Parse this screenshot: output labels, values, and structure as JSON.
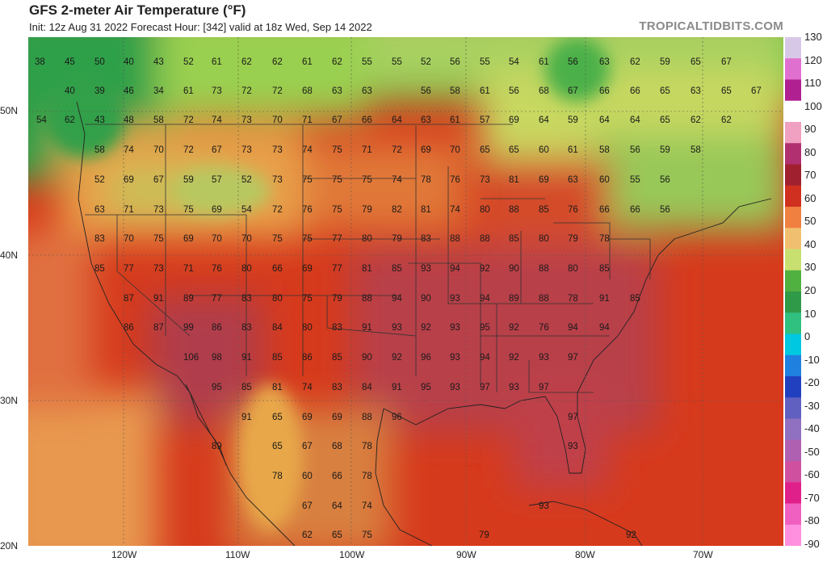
{
  "header": {
    "title": "GFS 2-meter Air Temperature (°F)",
    "subtitle": "Init: 12z Aug 31 2022   Forecast Hour: [342]   valid at 18z Wed, Sep 14 2022",
    "brand": "TROPICALTIDBITS.COM"
  },
  "axes": {
    "lat_labels": [
      "50N",
      "40N",
      "30N",
      "20N"
    ],
    "lon_labels": [
      "120W",
      "110W",
      "100W",
      "90W",
      "80W",
      "70W"
    ]
  },
  "colorbar": {
    "labels": [
      "130",
      "120",
      "110",
      "100",
      "90",
      "80",
      "70",
      "60",
      "50",
      "40",
      "30",
      "20",
      "10",
      "0",
      "-10",
      "-20",
      "-30",
      "-40",
      "-50",
      "-60",
      "-70",
      "-80",
      "-90"
    ],
    "colors": [
      "#d8c8e8",
      "#e070d0",
      "#b02090",
      "#ffffff",
      "#f0a0c0",
      "#b03070",
      "#a02030",
      "#d03020",
      "#f08040",
      "#f0c070",
      "#c8e070",
      "#50b040",
      "#2f9a48",
      "#30c080",
      "#00c8e0",
      "#2080e0",
      "#2040c0",
      "#6060c0",
      "#9070c0",
      "#b060b0",
      "#d050a0",
      "#e0208a",
      "#f060c0",
      "#ff90e0"
    ]
  },
  "map_values": [
    "38",
    "45",
    "50",
    "40",
    "43",
    "52",
    "61",
    "62",
    "62",
    "61",
    "62",
    "55",
    "55",
    "52",
    "56",
    "55",
    "54",
    "61",
    "56",
    "63",
    "62",
    "59",
    "65",
    "67",
    "40",
    "39",
    "46",
    "34",
    "61",
    "73",
    "72",
    "72",
    "68",
    "63",
    "63",
    "56",
    "58",
    "61",
    "56",
    "68",
    "67",
    "66",
    "66",
    "65",
    "63",
    "65",
    "67",
    "54",
    "62",
    "43",
    "48",
    "58",
    "72",
    "74",
    "73",
    "70",
    "71",
    "67",
    "66",
    "64",
    "63",
    "61",
    "57",
    "69",
    "64",
    "59",
    "64",
    "64",
    "65",
    "62",
    "62",
    "58",
    "74",
    "70",
    "72",
    "67",
    "73",
    "73",
    "74",
    "75",
    "71",
    "72",
    "69",
    "70",
    "65",
    "65",
    "60",
    "61",
    "58",
    "56",
    "59",
    "58",
    "52",
    "69",
    "67",
    "59",
    "57",
    "52",
    "73",
    "75",
    "75",
    "75",
    "74",
    "78",
    "76",
    "73",
    "81",
    "69",
    "63",
    "60",
    "55",
    "56",
    "63",
    "71",
    "73",
    "75",
    "69",
    "54",
    "72",
    "76",
    "75",
    "79",
    "82",
    "81",
    "74",
    "80",
    "88",
    "85",
    "76",
    "66",
    "66",
    "56",
    "83",
    "70",
    "75",
    "69",
    "70",
    "70",
    "75",
    "75",
    "77",
    "80",
    "79",
    "83",
    "88",
    "88",
    "85",
    "80",
    "79",
    "78",
    "85",
    "77",
    "73",
    "71",
    "76",
    "80",
    "66",
    "69",
    "77",
    "81",
    "85",
    "93",
    "94",
    "92",
    "90",
    "88",
    "80",
    "85",
    "87",
    "91",
    "89",
    "77",
    "83",
    "80",
    "75",
    "79",
    "88",
    "94",
    "90",
    "93",
    "94",
    "89",
    "88",
    "78",
    "91",
    "85",
    "86",
    "87",
    "99",
    "86",
    "83",
    "84",
    "80",
    "83",
    "91",
    "93",
    "92",
    "93",
    "95",
    "92",
    "76",
    "94",
    "94",
    "106",
    "98",
    "91",
    "85",
    "86",
    "85",
    "90",
    "92",
    "96",
    "93",
    "94",
    "92",
    "93",
    "97",
    "95",
    "85",
    "81",
    "74",
    "83",
    "84",
    "91",
    "95",
    "93",
    "97",
    "93",
    "97",
    "91",
    "65",
    "69",
    "69",
    "88",
    "96",
    "97",
    "89",
    "65",
    "67",
    "68",
    "78",
    "93",
    "78",
    "60",
    "66",
    "78",
    "67",
    "64",
    "74",
    "93",
    "62",
    "65",
    "75",
    "79",
    "92"
  ]
}
